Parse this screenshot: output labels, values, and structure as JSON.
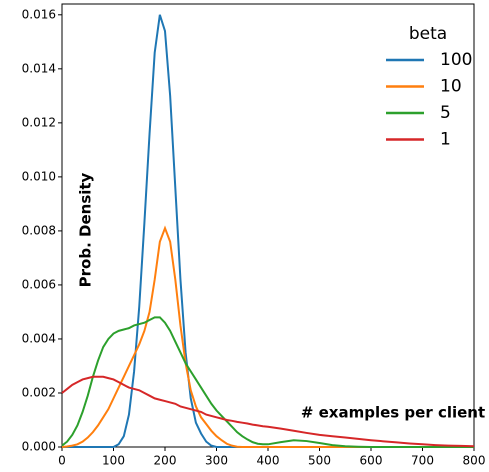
{
  "chart_data": {
    "type": "line",
    "xlabel": "# examples per client",
    "ylabel": "Prob. Density",
    "legend_title": "beta",
    "legend": "upper right",
    "x": [
      0,
      10,
      20,
      30,
      40,
      50,
      60,
      70,
      80,
      90,
      100,
      110,
      120,
      130,
      140,
      150,
      160,
      170,
      180,
      190,
      200,
      210,
      220,
      230,
      240,
      250,
      260,
      270,
      280,
      290,
      300,
      310,
      320,
      330,
      340,
      350,
      360,
      370,
      380,
      390,
      400,
      425,
      450,
      475,
      500,
      525,
      550,
      575,
      600,
      625,
      650,
      675,
      700,
      725,
      750,
      775,
      800
    ],
    "series": [
      {
        "name": "100",
        "color": "#1f77b4",
        "values": [
          0,
          0,
          0,
          0,
          0,
          0,
          0,
          0,
          0,
          0,
          0,
          0.0001,
          0.0004,
          0.0012,
          0.0028,
          0.0052,
          0.0083,
          0.0116,
          0.0146,
          0.016,
          0.0154,
          0.013,
          0.0096,
          0.0062,
          0.0035,
          0.0018,
          0.0009,
          0.0005,
          0.0002,
          5e-05,
          0,
          0,
          0,
          0,
          0,
          0,
          0,
          0,
          0,
          0,
          0,
          0,
          0,
          0,
          0,
          0,
          0,
          0,
          0,
          0,
          0,
          0,
          0,
          0,
          0,
          0,
          0
        ]
      },
      {
        "name": "10",
        "color": "#ff7f0e",
        "values": [
          0,
          2e-05,
          5e-05,
          0.0001,
          0.0002,
          0.00035,
          0.00055,
          0.0008,
          0.0011,
          0.0014,
          0.0018,
          0.0022,
          0.0026,
          0.003,
          0.0034,
          0.0038,
          0.0043,
          0.005,
          0.0062,
          0.0076,
          0.0081,
          0.0076,
          0.0062,
          0.0045,
          0.0031,
          0.0021,
          0.0015,
          0.0011,
          0.00085,
          0.0006,
          0.0004,
          0.00025,
          0.00012,
          5e-05,
          1e-05,
          0,
          0,
          0,
          0,
          0,
          0,
          0,
          0,
          0,
          0,
          0,
          0,
          0,
          0,
          0,
          0,
          0,
          0,
          0,
          0,
          0,
          0
        ]
      },
      {
        "name": "5",
        "color": "#2ca02c",
        "values": [
          5e-05,
          0.0002,
          0.00045,
          0.0008,
          0.0013,
          0.0019,
          0.0026,
          0.0032,
          0.0037,
          0.004,
          0.0042,
          0.0043,
          0.00435,
          0.0044,
          0.0045,
          0.00455,
          0.0046,
          0.0047,
          0.0048,
          0.0048,
          0.0046,
          0.0043,
          0.0039,
          0.0035,
          0.0031,
          0.0028,
          0.0025,
          0.0022,
          0.0019,
          0.0016,
          0.00135,
          0.00115,
          0.00095,
          0.00075,
          0.00055,
          0.0004,
          0.00028,
          0.00018,
          0.00012,
          0.0001,
          0.0001,
          0.00018,
          0.00025,
          0.00022,
          0.00015,
          7e-05,
          3e-05,
          1e-05,
          0,
          0,
          0,
          0,
          0,
          0,
          0,
          0,
          0
        ]
      },
      {
        "name": "1",
        "color": "#d62728",
        "values": [
          0.002,
          0.00215,
          0.0023,
          0.0024,
          0.0025,
          0.00255,
          0.0026,
          0.0026,
          0.0026,
          0.00255,
          0.0025,
          0.0024,
          0.0023,
          0.0022,
          0.00215,
          0.0021,
          0.002,
          0.0019,
          0.0018,
          0.00175,
          0.0017,
          0.00165,
          0.0016,
          0.0015,
          0.00145,
          0.0014,
          0.00135,
          0.0013,
          0.0012,
          0.00115,
          0.0011,
          0.00105,
          0.001,
          0.00097,
          0.00093,
          0.0009,
          0.00087,
          0.00083,
          0.0008,
          0.00077,
          0.00075,
          0.00068,
          0.0006,
          0.00052,
          0.00045,
          0.0004,
          0.00035,
          0.0003,
          0.00025,
          0.00021,
          0.00017,
          0.00013,
          0.0001,
          7e-05,
          5e-05,
          4e-05,
          3e-05
        ]
      }
    ],
    "xlim": [
      0,
      800
    ],
    "xticks": [
      0,
      100,
      200,
      300,
      400,
      500,
      600,
      700,
      800
    ],
    "ylim": [
      0,
      0.0164
    ],
    "yticks": [
      {
        "value": 0,
        "label": "0.000"
      },
      {
        "value": 0.002,
        "label": "0.002"
      },
      {
        "value": 0.004,
        "label": "0.004"
      },
      {
        "value": 0.006,
        "label": "0.006"
      },
      {
        "value": 0.008,
        "label": "0.008"
      },
      {
        "value": 0.01,
        "label": "0.010"
      },
      {
        "value": 0.012,
        "label": "0.012"
      },
      {
        "value": 0.014,
        "label": "0.014"
      },
      {
        "value": 0.016,
        "label": "0.016"
      }
    ]
  }
}
